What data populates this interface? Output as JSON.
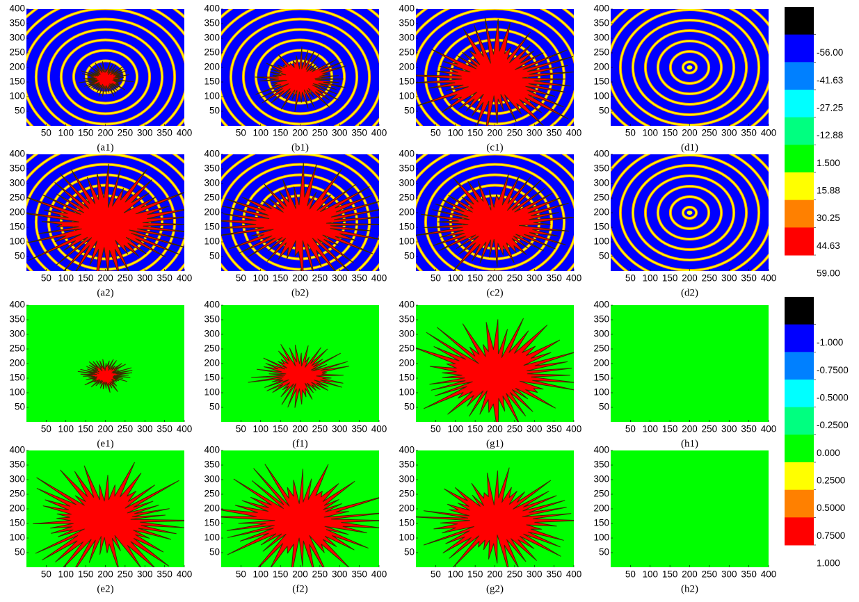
{
  "chart_data": [
    {
      "type": "heatmap",
      "label": "(a1)",
      "xlim": [
        0,
        400
      ],
      "ylim": [
        0,
        400
      ],
      "xticks": [
        50,
        100,
        150,
        200,
        250,
        300,
        350,
        400
      ],
      "yticks": [
        50,
        100,
        150,
        200,
        250,
        300,
        350,
        400
      ]
    },
    {
      "type": "heatmap",
      "label": "(b1)",
      "xlim": [
        0,
        400
      ],
      "ylim": [
        0,
        400
      ],
      "xticks": [
        50,
        100,
        150,
        200,
        250,
        300,
        350,
        400
      ],
      "yticks": [
        50,
        100,
        150,
        200,
        250,
        300,
        350,
        400
      ]
    },
    {
      "type": "heatmap",
      "label": "(c1)",
      "xlim": [
        0,
        400
      ],
      "ylim": [
        0,
        400
      ],
      "xticks": [
        50,
        100,
        150,
        200,
        250,
        300,
        350,
        400
      ],
      "yticks": [
        50,
        100,
        150,
        200,
        250,
        300,
        350,
        400
      ]
    },
    {
      "type": "heatmap",
      "label": "(d1)",
      "xlim": [
        0,
        400
      ],
      "ylim": [
        0,
        400
      ],
      "xticks": [
        50,
        100,
        150,
        200,
        250,
        300,
        350,
        400
      ],
      "yticks": [
        50,
        100,
        150,
        200,
        250,
        300,
        350,
        400
      ]
    },
    {
      "type": "heatmap",
      "label": "(a2)",
      "xlim": [
        0,
        400
      ],
      "ylim": [
        0,
        400
      ],
      "xticks": [
        50,
        100,
        150,
        200,
        250,
        300,
        350,
        400
      ],
      "yticks": [
        50,
        100,
        150,
        200,
        250,
        300,
        350,
        400
      ]
    },
    {
      "type": "heatmap",
      "label": "(b2)",
      "xlim": [
        0,
        400
      ],
      "ylim": [
        0,
        400
      ],
      "xticks": [
        50,
        100,
        150,
        200,
        250,
        300,
        350,
        400
      ],
      "yticks": [
        50,
        100,
        150,
        200,
        250,
        300,
        350,
        400
      ]
    },
    {
      "type": "heatmap",
      "label": "(c2)",
      "xlim": [
        0,
        400
      ],
      "ylim": [
        0,
        400
      ],
      "xticks": [
        50,
        100,
        150,
        200,
        250,
        300,
        350,
        400
      ],
      "yticks": [
        50,
        100,
        150,
        200,
        250,
        300,
        350,
        400
      ]
    },
    {
      "type": "heatmap",
      "label": "(d2)",
      "xlim": [
        0,
        400
      ],
      "ylim": [
        0,
        400
      ],
      "xticks": [
        50,
        100,
        150,
        200,
        250,
        300,
        350,
        400
      ],
      "yticks": [
        50,
        100,
        150,
        200,
        250,
        300,
        350,
        400
      ]
    },
    {
      "type": "heatmap",
      "label": "(e1)",
      "xlim": [
        0,
        400
      ],
      "ylim": [
        0,
        400
      ],
      "xticks": [
        50,
        100,
        150,
        200,
        250,
        300,
        350,
        400
      ],
      "yticks": [
        50,
        100,
        150,
        200,
        250,
        300,
        350,
        400
      ]
    },
    {
      "type": "heatmap",
      "label": "(f1)",
      "xlim": [
        0,
        400
      ],
      "ylim": [
        0,
        400
      ],
      "xticks": [
        50,
        100,
        150,
        200,
        250,
        300,
        350,
        400
      ],
      "yticks": [
        50,
        100,
        150,
        200,
        250,
        300,
        350,
        400
      ]
    },
    {
      "type": "heatmap",
      "label": "(g1)",
      "xlim": [
        0,
        400
      ],
      "ylim": [
        0,
        400
      ],
      "xticks": [
        50,
        100,
        150,
        200,
        250,
        300,
        350,
        400
      ],
      "yticks": [
        50,
        100,
        150,
        200,
        250,
        300,
        350,
        400
      ]
    },
    {
      "type": "heatmap",
      "label": "(h1)",
      "xlim": [
        0,
        400
      ],
      "ylim": [
        0,
        400
      ],
      "xticks": [
        50,
        100,
        150,
        200,
        250,
        300,
        350,
        400
      ],
      "yticks": [
        50,
        100,
        150,
        200,
        250,
        300,
        350,
        400
      ]
    },
    {
      "type": "heatmap",
      "label": "(e2)",
      "xlim": [
        0,
        400
      ],
      "ylim": [
        0,
        400
      ],
      "xticks": [
        50,
        100,
        150,
        200,
        250,
        300,
        350,
        400
      ],
      "yticks": [
        50,
        100,
        150,
        200,
        250,
        300,
        350,
        400
      ]
    },
    {
      "type": "heatmap",
      "label": "(f2)",
      "xlim": [
        0,
        400
      ],
      "ylim": [
        0,
        400
      ],
      "xticks": [
        50,
        100,
        150,
        200,
        250,
        300,
        350,
        400
      ],
      "yticks": [
        50,
        100,
        150,
        200,
        250,
        300,
        350,
        400
      ]
    },
    {
      "type": "heatmap",
      "label": "(g2)",
      "xlim": [
        0,
        400
      ],
      "ylim": [
        0,
        400
      ],
      "xticks": [
        50,
        100,
        150,
        200,
        250,
        300,
        350,
        400
      ],
      "yticks": [
        50,
        100,
        150,
        200,
        250,
        300,
        350,
        400
      ]
    },
    {
      "type": "heatmap",
      "label": "(h2)",
      "xlim": [
        0,
        400
      ],
      "ylim": [
        0,
        400
      ],
      "xticks": [
        50,
        100,
        150,
        200,
        250,
        300,
        350,
        400
      ],
      "yticks": [
        50,
        100,
        150,
        200,
        250,
        300,
        350,
        400
      ]
    },
    {
      "type": "colorbar",
      "lim": [
        -70.375,
        59
      ],
      "colors": [
        "#000000",
        "#0000ff",
        "#0080ff",
        "#00ffff",
        "#00ff80",
        "#00ff00",
        "#ffff00",
        "#ff8000",
        "#ff0000"
      ],
      "ticks": [
        {
          "value": -56,
          "label": "-56.00"
        },
        {
          "value": -41.63,
          "label": "-41.63"
        },
        {
          "value": -27.25,
          "label": "-27.25"
        },
        {
          "value": -12.88,
          "label": "-12.88"
        },
        {
          "value": 1.5,
          "label": "1.500"
        },
        {
          "value": 15.88,
          "label": "15.88"
        },
        {
          "value": 30.25,
          "label": "30.25"
        },
        {
          "value": 44.63,
          "label": "44.63"
        },
        {
          "value": 59,
          "label": "59.00"
        }
      ]
    },
    {
      "type": "colorbar",
      "lim": [
        -1.25,
        1
      ],
      "colors": [
        "#000000",
        "#0000ff",
        "#0080ff",
        "#00ffff",
        "#00ff80",
        "#00ff00",
        "#ffff00",
        "#ff8000",
        "#ff0000"
      ],
      "ticks": [
        {
          "value": -1,
          "label": "-1.000"
        },
        {
          "value": -0.75,
          "label": "-0.7500"
        },
        {
          "value": -0.5,
          "label": "-0.5000"
        },
        {
          "value": -0.25,
          "label": "-0.2500"
        },
        {
          "value": 0,
          "label": "0.000"
        },
        {
          "value": 0.25,
          "label": "0.2500"
        },
        {
          "value": 0.5,
          "label": "0.5000"
        },
        {
          "value": 0.75,
          "label": "0.7500"
        },
        {
          "value": 1,
          "label": "1.000"
        }
      ]
    }
  ]
}
